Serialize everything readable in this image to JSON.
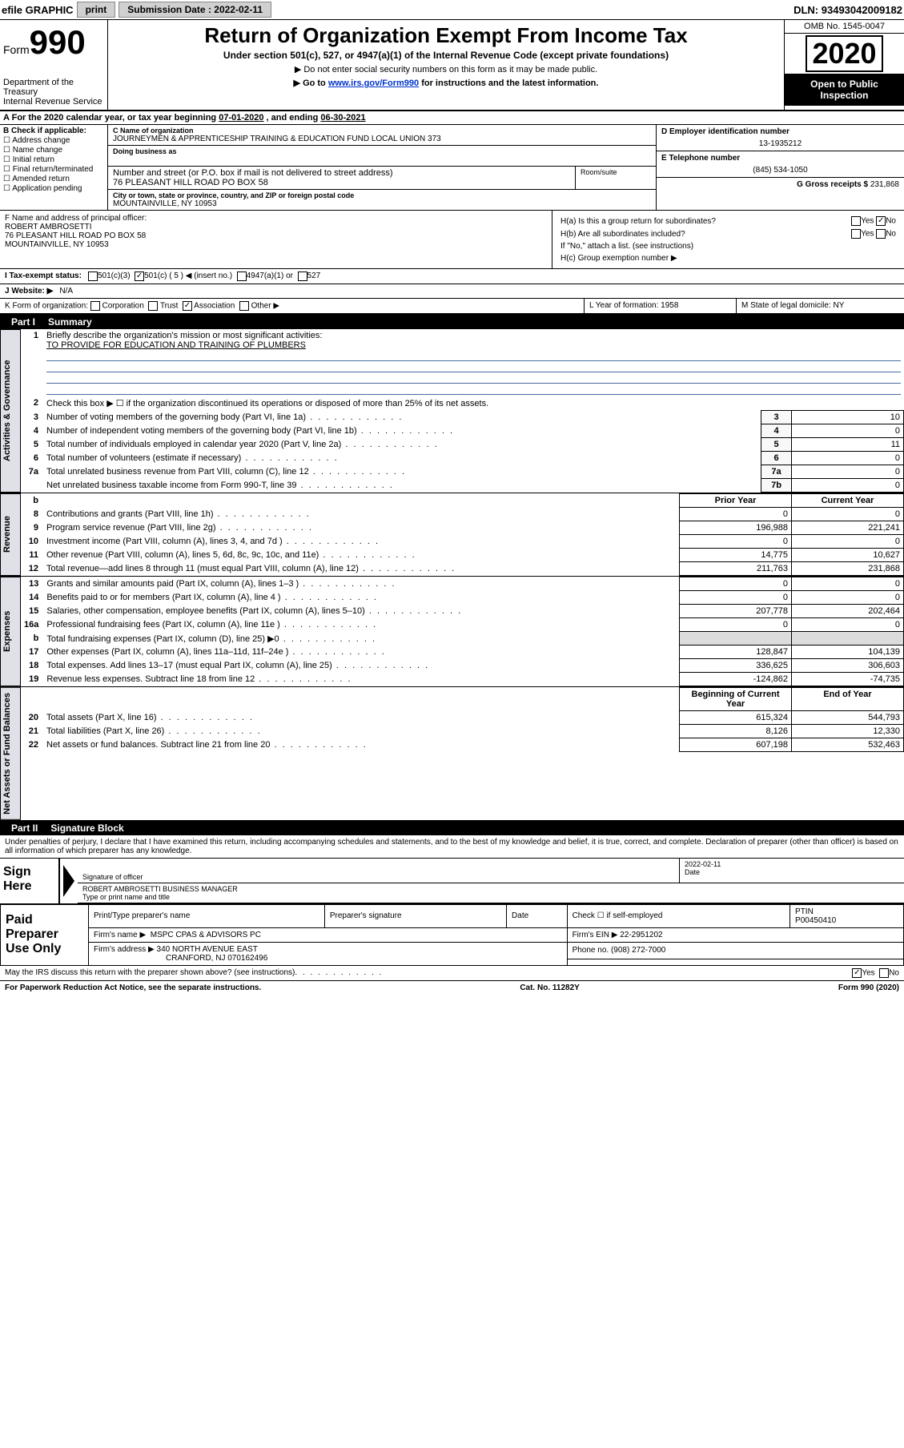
{
  "topbar": {
    "efile_label": "efile GRAPHIC",
    "print_btn": "print",
    "submission_label": "Submission Date :",
    "submission_date": "2022-02-11",
    "dln_label": "DLN:",
    "dln": "93493042009182"
  },
  "header": {
    "form_prefix": "Form",
    "form_number": "990",
    "dept1": "Department of the Treasury",
    "dept2": "Internal Revenue Service",
    "title": "Return of Organization Exempt From Income Tax",
    "subtitle": "Under section 501(c), 527, or 4947(a)(1) of the Internal Revenue Code (except private foundations)",
    "note1": "▶ Do not enter social security numbers on this form as it may be made public.",
    "note2_pre": "▶ Go to ",
    "note2_link": "www.irs.gov/Form990",
    "note2_post": " for instructions and the latest information.",
    "omb": "OMB No. 1545-0047",
    "year": "2020",
    "open_public1": "Open to Public",
    "open_public2": "Inspection"
  },
  "rowA": {
    "text_pre": "For the 2020 calendar year, or tax year beginning ",
    "begin": "07-01-2020",
    "mid": " , and ending ",
    "end": "06-30-2021"
  },
  "colB": {
    "header": "B Check if applicable:",
    "opts": [
      "Address change",
      "Name change",
      "Initial return",
      "Final return/terminated",
      "Amended return",
      "Application pending"
    ]
  },
  "colC": {
    "name_label": "C Name of organization",
    "name": "JOURNEYMEN & APPRENTICESHIP TRAINING & EDUCATION FUND LOCAL UNION 373",
    "dba_label": "Doing business as",
    "street_label": "Number and street (or P.O. box if mail is not delivered to street address)",
    "room_label": "Room/suite",
    "street": "76 PLEASANT HILL ROAD PO BOX 58",
    "city_label": "City or town, state or province, country, and ZIP or foreign postal code",
    "city": "MOUNTAINVILLE, NY  10953"
  },
  "colDE": {
    "d_label": "D Employer identification number",
    "ein": "13-1935212",
    "e_label": "E Telephone number",
    "phone": "(845) 534-1050",
    "g_label": "G Gross receipts $",
    "gross": "231,868"
  },
  "colF": {
    "label": "F Name and address of principal officer:",
    "name": "ROBERT AMBROSETTI",
    "addr1": "76 PLEASANT HILL ROAD PO BOX 58",
    "addr2": "MOUNTAINVILLE, NY  10953"
  },
  "colH": {
    "ha": "H(a)  Is this a group return for subordinates?",
    "hb": "H(b)  Are all subordinates included?",
    "hb_note": "If \"No,\" attach a list. (see instructions)",
    "hc": "H(c)  Group exemption number ▶",
    "yes": "Yes",
    "no": "No"
  },
  "rowI": {
    "label": "I  Tax-exempt status:",
    "o1": "501(c)(3)",
    "o2": "501(c) ( 5 ) ◀ (insert no.)",
    "o3": "4947(a)(1) or",
    "o4": "527"
  },
  "rowJ": {
    "label": "J  Website: ▶",
    "val": "N/A"
  },
  "rowK": {
    "label": "K Form of organization:",
    "o1": "Corporation",
    "o2": "Trust",
    "o3": "Association",
    "o4": "Other ▶"
  },
  "colL": {
    "label": "L Year of formation:",
    "val": "1958"
  },
  "colM": {
    "label": "M State of legal domicile:",
    "val": "NY"
  },
  "part1": {
    "label": "Part I",
    "title": "Summary"
  },
  "summary": {
    "line1_label": "Briefly describe the organization's mission or most significant activities:",
    "line1_val": "TO PROVIDE FOR EDUCATION AND TRAINING OF PLUMBERS",
    "line2": "Check this box ▶ ☐  if the organization discontinued its operations or disposed of more than 25% of its net assets.",
    "rows_3_7": [
      {
        "n": "3",
        "t": "Number of voting members of the governing body (Part VI, line 1a)",
        "c": "3",
        "v": "10"
      },
      {
        "n": "4",
        "t": "Number of independent voting members of the governing body (Part VI, line 1b)",
        "c": "4",
        "v": "0"
      },
      {
        "n": "5",
        "t": "Total number of individuals employed in calendar year 2020 (Part V, line 2a)",
        "c": "5",
        "v": "11"
      },
      {
        "n": "6",
        "t": "Total number of volunteers (estimate if necessary)",
        "c": "6",
        "v": "0"
      },
      {
        "n": "7a",
        "t": "Total unrelated business revenue from Part VIII, column (C), line 12",
        "c": "7a",
        "v": "0"
      },
      {
        "n": "",
        "t": "Net unrelated business taxable income from Form 990-T, line 39",
        "c": "7b",
        "v": "0"
      }
    ],
    "prior_header": "Prior Year",
    "current_header": "Current Year",
    "rows_8_12": [
      {
        "n": "8",
        "t": "Contributions and grants (Part VIII, line 1h)",
        "p": "0",
        "c": "0"
      },
      {
        "n": "9",
        "t": "Program service revenue (Part VIII, line 2g)",
        "p": "196,988",
        "c": "221,241"
      },
      {
        "n": "10",
        "t": "Investment income (Part VIII, column (A), lines 3, 4, and 7d )",
        "p": "0",
        "c": "0"
      },
      {
        "n": "11",
        "t": "Other revenue (Part VIII, column (A), lines 5, 6d, 8c, 9c, 10c, and 11e)",
        "p": "14,775",
        "c": "10,627"
      },
      {
        "n": "12",
        "t": "Total revenue—add lines 8 through 11 (must equal Part VIII, column (A), line 12)",
        "p": "211,763",
        "c": "231,868"
      }
    ],
    "rows_13_19": [
      {
        "n": "13",
        "t": "Grants and similar amounts paid (Part IX, column (A), lines 1–3 )",
        "p": "0",
        "c": "0"
      },
      {
        "n": "14",
        "t": "Benefits paid to or for members (Part IX, column (A), line 4 )",
        "p": "0",
        "c": "0"
      },
      {
        "n": "15",
        "t": "Salaries, other compensation, employee benefits (Part IX, column (A), lines 5–10)",
        "p": "207,778",
        "c": "202,464"
      },
      {
        "n": "16a",
        "t": "Professional fundraising fees (Part IX, column (A), line 11e )",
        "p": "0",
        "c": "0"
      },
      {
        "n": "b",
        "t": "Total fundraising expenses (Part IX, column (D), line 25) ▶0",
        "p": "",
        "c": "",
        "grey": true
      },
      {
        "n": "17",
        "t": "Other expenses (Part IX, column (A), lines 11a–11d, 11f–24e )",
        "p": "128,847",
        "c": "104,139"
      },
      {
        "n": "18",
        "t": "Total expenses. Add lines 13–17 (must equal Part IX, column (A), line 25)",
        "p": "336,625",
        "c": "306,603"
      },
      {
        "n": "19",
        "t": "Revenue less expenses. Subtract line 18 from line 12",
        "p": "-124,862",
        "c": "-74,735"
      }
    ],
    "boy_header": "Beginning of Current Year",
    "eoy_header": "End of Year",
    "rows_20_22": [
      {
        "n": "20",
        "t": "Total assets (Part X, line 16)",
        "p": "615,324",
        "c": "544,793"
      },
      {
        "n": "21",
        "t": "Total liabilities (Part X, line 26)",
        "p": "8,126",
        "c": "12,330"
      },
      {
        "n": "22",
        "t": "Net assets or fund balances. Subtract line 21 from line 20",
        "p": "607,198",
        "c": "532,463"
      }
    ],
    "vtab1": "Activities & Governance",
    "vtab2": "Revenue",
    "vtab3": "Expenses",
    "vtab4": "Net Assets or Fund Balances"
  },
  "part2": {
    "label": "Part II",
    "title": "Signature Block"
  },
  "sig": {
    "penalty": "Under penalties of perjury, I declare that I have examined this return, including accompanying schedules and statements, and to the best of my knowledge and belief, it is true, correct, and complete. Declaration of preparer (other than officer) is based on all information of which preparer has any knowledge.",
    "sign_here": "Sign Here",
    "sig_officer": "Signature of officer",
    "date_label": "Date",
    "sig_date": "2022-02-11",
    "name_title": "ROBERT AMBROSETTI  BUSINESS MANAGER",
    "type_label": "Type or print name and title"
  },
  "preparer": {
    "left": "Paid Preparer Use Only",
    "h1": "Print/Type preparer's name",
    "h2": "Preparer's signature",
    "h3": "Date",
    "h4_pre": "Check ☐ if self-employed",
    "h5_label": "PTIN",
    "ptin": "P00450410",
    "firm_name_label": "Firm's name    ▶",
    "firm_name": "MSPC CPAS & ADVISORS PC",
    "firm_ein_label": "Firm's EIN ▶",
    "firm_ein": "22-2951202",
    "firm_addr_label": "Firm's address ▶",
    "firm_addr1": "340 NORTH AVENUE EAST",
    "firm_addr2": "CRANFORD, NJ  070162496",
    "phone_label": "Phone no.",
    "phone": "(908) 272-7000"
  },
  "footer": {
    "discuss": "May the IRS discuss this return with the preparer shown above? (see instructions)",
    "yes": "Yes",
    "no": "No",
    "paperwork": "For Paperwork Reduction Act Notice, see the separate instructions.",
    "catno": "Cat. No. 11282Y",
    "formrev": "Form 990 (2020)"
  },
  "colors": {
    "link": "#0033cc",
    "black": "#000000",
    "grey_bg": "#dcdcdc",
    "vtab_bg": "#e0e0e8",
    "btn_bg": "#d0d0d0"
  }
}
